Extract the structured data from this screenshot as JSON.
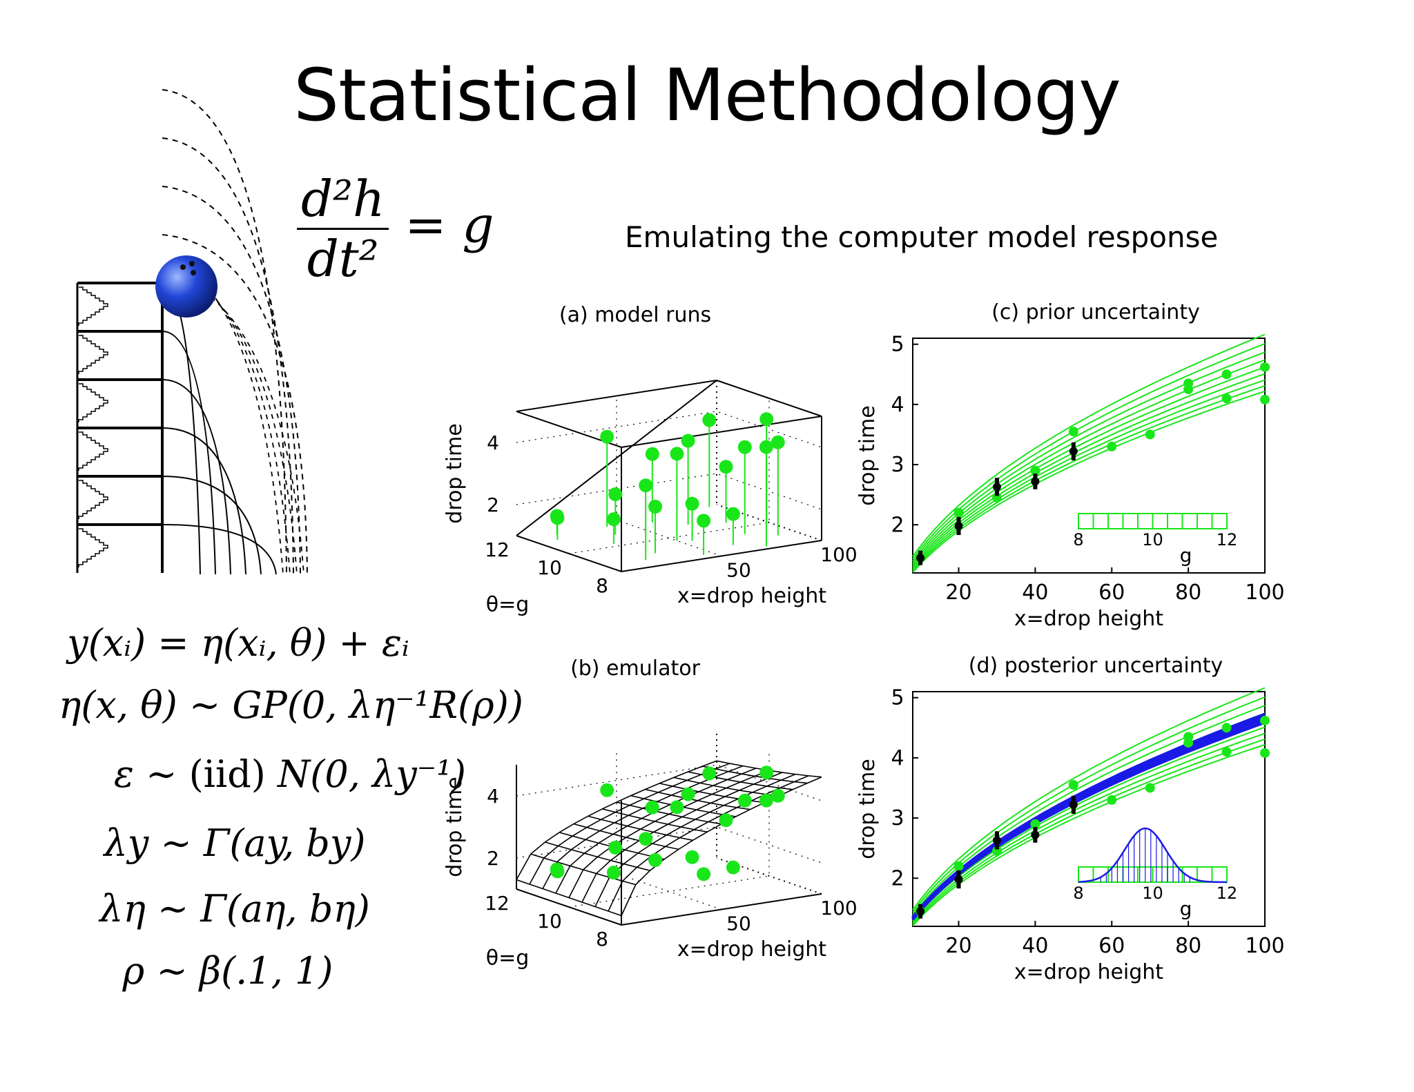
{
  "slide": {
    "title": "Statistical Methodology",
    "subtitle": "Emulating the computer model response",
    "ode": {
      "numerator": "d²h",
      "denominator": "dt²",
      "rhs": "= g"
    },
    "equations": [
      {
        "lhs": "y(xᵢ)",
        "rel": "=",
        "rhs": "η(xᵢ, θ) + εᵢ"
      },
      {
        "lhs": "η(x, θ)",
        "rel": "∼",
        "rhs": "GP(0, λη⁻¹R(ρ))"
      },
      {
        "lhs": "ε",
        "rel": "∼ (iid)",
        "rhs": "N(0, λy⁻¹)"
      },
      {
        "lhs": "λy",
        "rel": "∼",
        "rhs": "Γ(ay, by)"
      },
      {
        "lhs": "λη",
        "rel": "∼",
        "rhs": "Γ(aη, bη)"
      },
      {
        "lhs": "ρ",
        "rel": "∼",
        "rhs": "β(.1, 1)"
      }
    ]
  },
  "colors": {
    "runs": "#19e619",
    "posterior": "#1a1ae6",
    "frame": "#000000"
  },
  "chart_data": [
    {
      "id": "a",
      "type": "scatter",
      "title": "(a) model runs",
      "xlabel": "x=drop height",
      "ylabel": "θ=g",
      "zlabel": "drop time",
      "x_ticks": [
        "50",
        "100"
      ],
      "y_ticks": [
        "8",
        "10",
        "12"
      ],
      "z_ticks": [
        "2",
        "4"
      ],
      "xlim": [
        0,
        100
      ],
      "ylim": [
        8,
        12
      ],
      "zlim": [
        1,
        5
      ],
      "points": [
        {
          "x": 10,
          "g": 11.2,
          "t": 1.7
        },
        {
          "x": 15,
          "g": 11.6,
          "t": 1.6
        },
        {
          "x": 20,
          "g": 8.6,
          "t": 3.4
        },
        {
          "x": 25,
          "g": 10.2,
          "t": 1.8
        },
        {
          "x": 30,
          "g": 9.0,
          "t": 2.5
        },
        {
          "x": 35,
          "g": 10.9,
          "t": 2.3
        },
        {
          "x": 40,
          "g": 11.6,
          "t": 3.9
        },
        {
          "x": 45,
          "g": 8.3,
          "t": 2.1
        },
        {
          "x": 50,
          "g": 9.7,
          "t": 3.8
        },
        {
          "x": 55,
          "g": 9.5,
          "t": 2.2
        },
        {
          "x": 60,
          "g": 11.4,
          "t": 3.2
        },
        {
          "x": 65,
          "g": 8.7,
          "t": 2.0
        },
        {
          "x": 70,
          "g": 10.8,
          "t": 3.7
        },
        {
          "x": 75,
          "g": 8.2,
          "t": 4.2
        },
        {
          "x": 80,
          "g": 9.4,
          "t": 3.8
        },
        {
          "x": 85,
          "g": 10.5,
          "t": 2.8
        },
        {
          "x": 90,
          "g": 8.9,
          "t": 4.0
        },
        {
          "x": 95,
          "g": 11.9,
          "t": 3.8
        },
        {
          "x": 100,
          "g": 10.1,
          "t": 4.3
        }
      ]
    },
    {
      "id": "b",
      "type": "scatter",
      "title": "(b) emulator",
      "xlabel": "x=drop height",
      "ylabel": "θ=g",
      "zlabel": "drop time",
      "x_ticks": [
        "50",
        "100"
      ],
      "y_ticks": [
        "8",
        "10",
        "12"
      ],
      "z_ticks": [
        "2",
        "4"
      ],
      "xlim": [
        0,
        100
      ],
      "ylim": [
        8,
        12
      ],
      "zlim": [
        1,
        5
      ],
      "surface": "drop time = sqrt(2x/g) over grid of x and g",
      "points": [
        {
          "x": 10,
          "g": 11.2,
          "t": 1.7
        },
        {
          "x": 15,
          "g": 11.6,
          "t": 1.6
        },
        {
          "x": 20,
          "g": 8.6,
          "t": 3.4
        },
        {
          "x": 25,
          "g": 10.2,
          "t": 1.8
        },
        {
          "x": 30,
          "g": 9.0,
          "t": 2.5
        },
        {
          "x": 35,
          "g": 10.9,
          "t": 2.3
        },
        {
          "x": 40,
          "g": 11.6,
          "t": 3.9
        },
        {
          "x": 45,
          "g": 8.3,
          "t": 2.1
        },
        {
          "x": 50,
          "g": 9.7,
          "t": 3.8
        },
        {
          "x": 55,
          "g": 9.5,
          "t": 2.2
        },
        {
          "x": 60,
          "g": 11.4,
          "t": 3.2
        },
        {
          "x": 65,
          "g": 8.7,
          "t": 2.0
        },
        {
          "x": 70,
          "g": 10.8,
          "t": 3.7
        },
        {
          "x": 75,
          "g": 8.2,
          "t": 4.2
        },
        {
          "x": 80,
          "g": 9.4,
          "t": 3.8
        },
        {
          "x": 85,
          "g": 10.5,
          "t": 2.8
        },
        {
          "x": 90,
          "g": 8.9,
          "t": 4.0
        },
        {
          "x": 95,
          "g": 11.9,
          "t": 3.8
        },
        {
          "x": 100,
          "g": 10.1,
          "t": 4.3
        }
      ]
    },
    {
      "id": "c",
      "type": "line",
      "title": "(c) prior uncertainty",
      "xlabel": "x=drop height",
      "ylabel": "drop time",
      "xlim": [
        8,
        100
      ],
      "ylim": [
        1.2,
        5.1
      ],
      "x_ticks": [
        20,
        40,
        60,
        80,
        100
      ],
      "y_ticks": [
        2,
        3,
        4,
        5
      ],
      "curve_g": [
        8,
        8.5,
        9,
        9.5,
        10,
        10.5,
        11,
        11.5,
        12
      ],
      "runs": [
        {
          "x": 10,
          "t": 1.45
        },
        {
          "x": 20,
          "t": 2.2
        },
        {
          "x": 30,
          "t": 2.45
        },
        {
          "x": 40,
          "t": 2.9
        },
        {
          "x": 50,
          "t": 3.55
        },
        {
          "x": 60,
          "t": 3.3
        },
        {
          "x": 70,
          "t": 3.5
        },
        {
          "x": 80,
          "t": 4.35
        },
        {
          "x": 80,
          "t": 4.25
        },
        {
          "x": 90,
          "t": 4.5
        },
        {
          "x": 90,
          "t": 4.1
        },
        {
          "x": 100,
          "t": 4.62
        },
        {
          "x": 100,
          "t": 4.08
        }
      ],
      "field": [
        {
          "x": 10,
          "t": 1.45,
          "err": 0.12
        },
        {
          "x": 20,
          "t": 1.98,
          "err": 0.15
        },
        {
          "x": 30,
          "t": 2.63,
          "err": 0.15
        },
        {
          "x": 40,
          "t": 2.72,
          "err": 0.13
        },
        {
          "x": 50,
          "t": 3.22,
          "err": 0.15
        }
      ],
      "inset": {
        "xlabel": "g",
        "ticks": [
          "8",
          "10",
          "12"
        ],
        "bins": 10,
        "range": [
          8,
          12
        ]
      }
    },
    {
      "id": "d",
      "type": "line",
      "title": "(d) posterior uncertainty",
      "xlabel": "x=drop height",
      "ylabel": "drop time",
      "xlim": [
        8,
        100
      ],
      "ylim": [
        1.2,
        5.1
      ],
      "x_ticks": [
        20,
        40,
        60,
        80,
        100
      ],
      "y_ticks": [
        2,
        3,
        4,
        5
      ],
      "curve_g": [
        8,
        8.5,
        9,
        9.5,
        10,
        10.5,
        11,
        11.5,
        12
      ],
      "posterior_g": [
        9.55,
        9.65,
        9.75,
        9.85,
        9.95,
        10.05,
        10.15
      ],
      "runs": [
        {
          "x": 10,
          "t": 1.45
        },
        {
          "x": 20,
          "t": 2.2
        },
        {
          "x": 30,
          "t": 2.45
        },
        {
          "x": 40,
          "t": 2.9
        },
        {
          "x": 50,
          "t": 3.55
        },
        {
          "x": 60,
          "t": 3.3
        },
        {
          "x": 70,
          "t": 3.5
        },
        {
          "x": 80,
          "t": 4.35
        },
        {
          "x": 80,
          "t": 4.25
        },
        {
          "x": 90,
          "t": 4.5
        },
        {
          "x": 90,
          "t": 4.1
        },
        {
          "x": 100,
          "t": 4.62
        },
        {
          "x": 100,
          "t": 4.08
        }
      ],
      "field": [
        {
          "x": 10,
          "t": 1.45,
          "err": 0.12
        },
        {
          "x": 20,
          "t": 1.98,
          "err": 0.15
        },
        {
          "x": 30,
          "t": 2.63,
          "err": 0.15
        },
        {
          "x": 40,
          "t": 2.72,
          "err": 0.13
        },
        {
          "x": 50,
          "t": 3.22,
          "err": 0.15
        }
      ],
      "inset": {
        "xlabel": "g",
        "ticks": [
          "8",
          "10",
          "12"
        ],
        "bins": 10,
        "range": [
          8,
          12
        ],
        "posterior_mean": 9.8,
        "posterior_sd": 0.55
      }
    }
  ]
}
